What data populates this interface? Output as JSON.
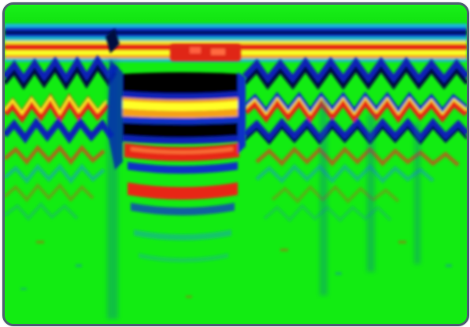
{
  "image": {
    "kind": "gpr-radargram",
    "palette": {
      "background": "#10ee10",
      "blue": "#1a3cd8",
      "dark_navy": "#050a40",
      "black": "#000000",
      "red": "#e8281c",
      "orange": "#f59a18",
      "yellow": "#ffff20",
      "cyan": "#18b0d0",
      "frame_border": "#4f6172"
    }
  }
}
